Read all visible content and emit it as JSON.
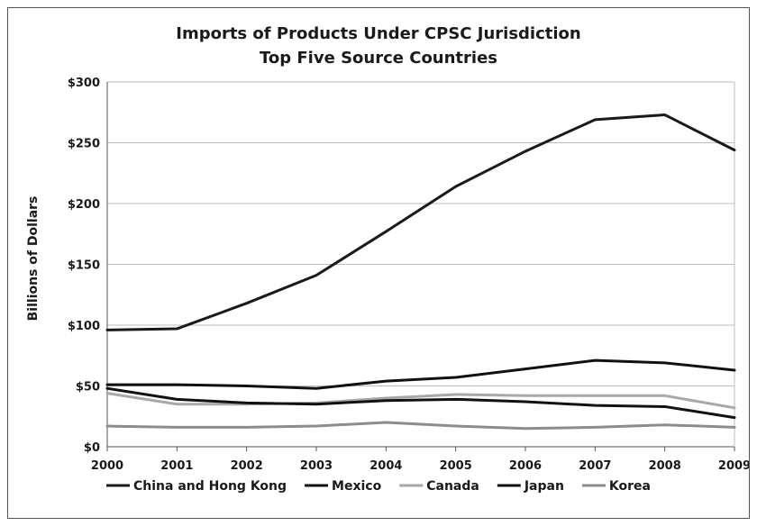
{
  "chart_data": {
    "type": "line",
    "title": "Imports of Products Under CPSC Jurisdiction",
    "subtitle": "Top Five Source Countries",
    "xlabel": "",
    "ylabel": "Billions of Dollars",
    "x": [
      2000,
      2001,
      2002,
      2003,
      2004,
      2005,
      2006,
      2007,
      2008,
      2009
    ],
    "x_tick_labels": [
      "2000",
      "2001",
      "2002",
      "2003",
      "2004",
      "2005",
      "2006",
      "2007",
      "2008",
      "2009"
    ],
    "ylim": [
      0,
      300
    ],
    "y_ticks": [
      0,
      50,
      100,
      150,
      200,
      250,
      300
    ],
    "y_tick_labels": [
      "$0",
      "$50",
      "$100",
      "$150",
      "$200",
      "$250",
      "$300"
    ],
    "grid": true,
    "legend_position": "bottom",
    "series": [
      {
        "name": "China and Hong Kong",
        "color": "#1a1a1a",
        "values": [
          96,
          97,
          118,
          141,
          177,
          214,
          243,
          269,
          273,
          244
        ]
      },
      {
        "name": "Mexico",
        "color": "#111111",
        "values": [
          51,
          51,
          50,
          48,
          54,
          57,
          64,
          71,
          69,
          63
        ]
      },
      {
        "name": "Canada",
        "color": "#a8a8a8",
        "values": [
          44,
          35,
          35,
          36,
          40,
          43,
          42,
          42,
          42,
          32
        ]
      },
      {
        "name": "Japan",
        "color": "#111111",
        "values": [
          48,
          39,
          36,
          35,
          38,
          39,
          37,
          34,
          33,
          24
        ]
      },
      {
        "name": "Korea",
        "color": "#8c8c8c",
        "values": [
          17,
          16,
          16,
          17,
          20,
          17,
          15,
          16,
          18,
          16
        ]
      }
    ]
  }
}
